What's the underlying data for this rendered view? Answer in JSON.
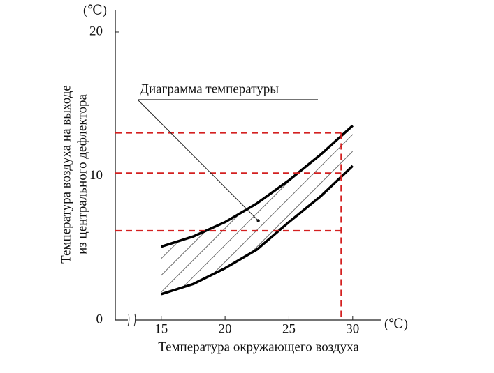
{
  "chart_data": {
    "type": "range",
    "x_label": "Температура окружающего воздуха",
    "x_unit": "(℃)",
    "y_label": [
      "Температура воздуха на выходе",
      "из центрального дефлектора"
    ],
    "y_unit": "(℃)",
    "x": [
      15,
      17.5,
      20,
      22.5,
      25,
      27.5,
      30
    ],
    "series": [
      {
        "values": [
          5.1,
          5.8,
          6.8,
          8.1,
          9.7,
          11.5,
          13.5
        ],
        "color": "#000000"
      },
      {
        "values": [
          1.8,
          2.5,
          3.6,
          4.9,
          6.8,
          8.6,
          10.7
        ],
        "color": "#000000"
      }
    ],
    "hatch": true,
    "xlim": [
      11.4,
      32.2
    ],
    "xticks": [
      15,
      20,
      25,
      30
    ],
    "ylim": [
      0,
      21.5
    ],
    "yticks": [
      0,
      10,
      20
    ],
    "ref_lines": {
      "y": [
        13,
        10.2,
        6.2
      ],
      "x": 29.1,
      "color": "#d42020"
    },
    "annotation": {
      "text": "Диаграмма температуры",
      "x": 22.6,
      "y": 6.9
    }
  }
}
